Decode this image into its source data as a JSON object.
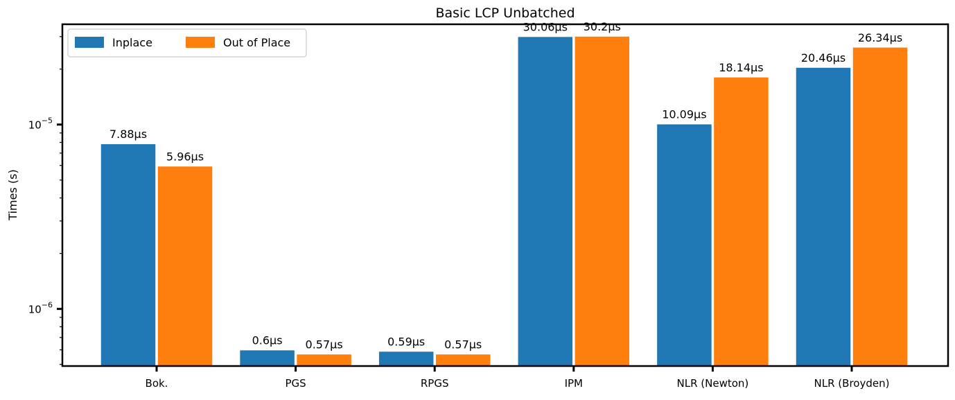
{
  "chart_data": {
    "type": "bar",
    "title": "Basic LCP Unbatched",
    "xlabel": "",
    "ylabel": "Times (s)",
    "yscale": "log",
    "ylim": [
      4.9e-07,
      3.5e-05
    ],
    "yticks": [
      {
        "value": 1e-05,
        "base": "10",
        "exp": "−5"
      },
      {
        "value": 1e-06,
        "base": "10",
        "exp": "−6"
      }
    ],
    "categories": [
      "Bok.",
      "PGS",
      "RPGS",
      "IPM",
      "NLR (Newton)",
      "NLR (Broyden)"
    ],
    "series": [
      {
        "name": "Inplace",
        "color": "#1f77b4",
        "values": [
          7.88e-06,
          6e-07,
          5.9e-07,
          3.006e-05,
          1.009e-05,
          2.046e-05
        ],
        "labels": [
          "7.88μs",
          "0.6μs",
          "0.59μs",
          "30.06μs",
          "10.09μs",
          "20.46μs"
        ]
      },
      {
        "name": "Out of Place",
        "color": "#ff7f0e",
        "values": [
          5.96e-06,
          5.7e-07,
          5.7e-07,
          3.02e-05,
          1.814e-05,
          2.634e-05
        ],
        "labels": [
          "5.96μs",
          "0.57μs",
          "0.57μs",
          "30.2μs",
          "18.14μs",
          "26.34μs"
        ]
      }
    ],
    "grid": false,
    "legend": "top-left"
  }
}
